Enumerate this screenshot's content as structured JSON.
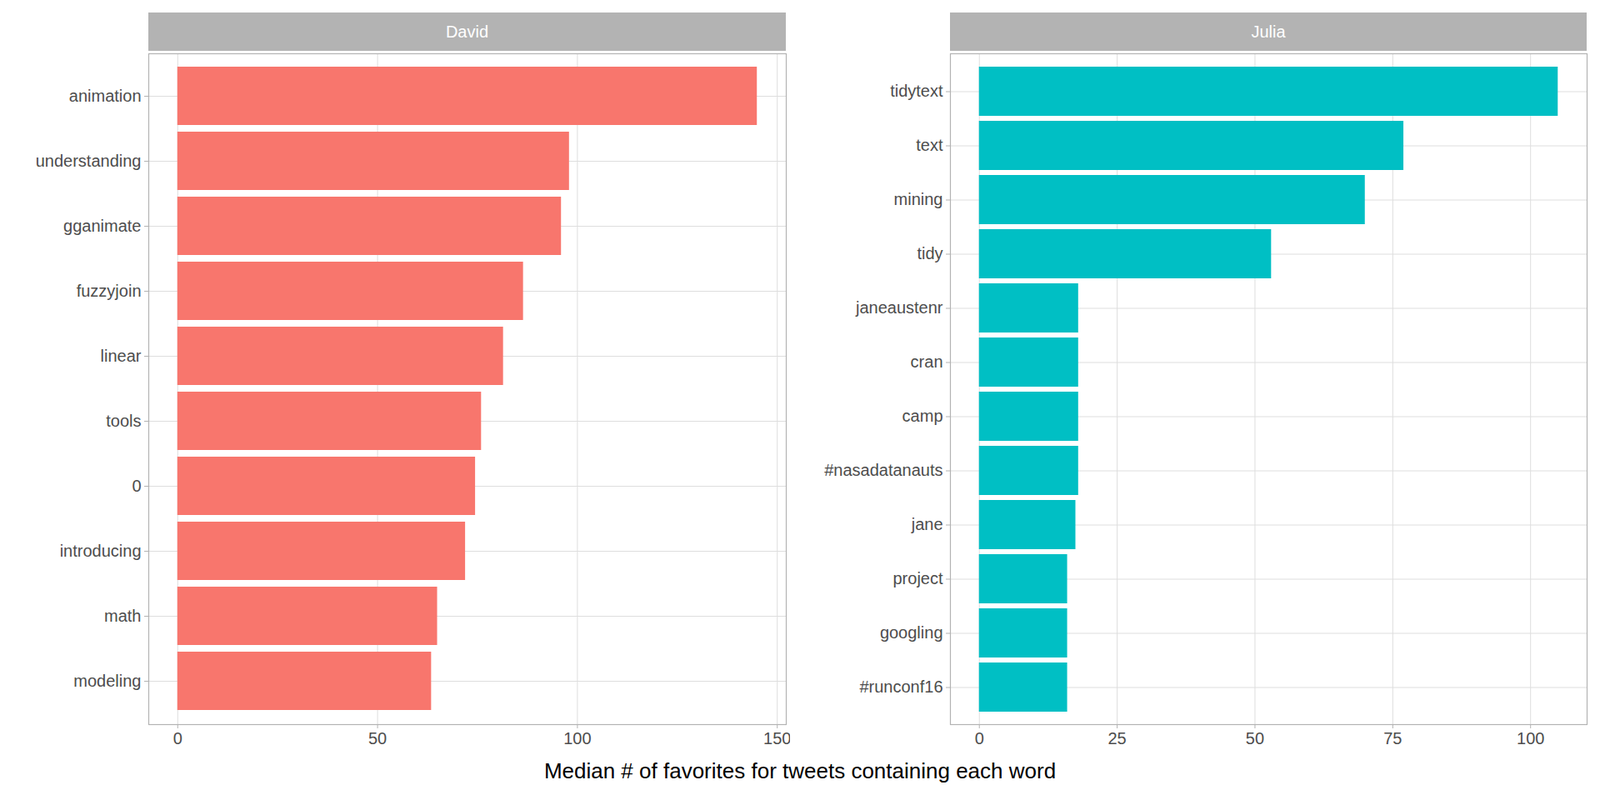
{
  "chart_data": {
    "type": "bar",
    "orientation": "horizontal",
    "grid": true,
    "xlabel": "Median # of favorites for tweets containing each word",
    "panels": [
      {
        "title": "David",
        "color": "#F8766D",
        "categories": [
          "animation",
          "understanding",
          "gganimate",
          "fuzzyjoin",
          "linear",
          "tools",
          "0",
          "introducing",
          "math",
          "modeling"
        ],
        "values": [
          145,
          98,
          96,
          86.5,
          81.5,
          76,
          74.5,
          72,
          65,
          63.5
        ],
        "xlim": [
          -7.25,
          152.25
        ],
        "xticks": [
          0,
          50,
          100,
          150
        ]
      },
      {
        "title": "Julia",
        "color": "#00BFC4",
        "categories": [
          "tidytext",
          "text",
          "mining",
          "tidy",
          "janeaustenr",
          "cran",
          "camp",
          "#nasadatanauts",
          "jane",
          "project",
          "googling",
          "#runconf16"
        ],
        "values": [
          105,
          77,
          70,
          53,
          18,
          18,
          18,
          18,
          17.5,
          16,
          16,
          16
        ],
        "xlim": [
          -5.25,
          110.25
        ],
        "xticks": [
          0,
          25,
          50,
          75,
          100
        ]
      }
    ]
  }
}
